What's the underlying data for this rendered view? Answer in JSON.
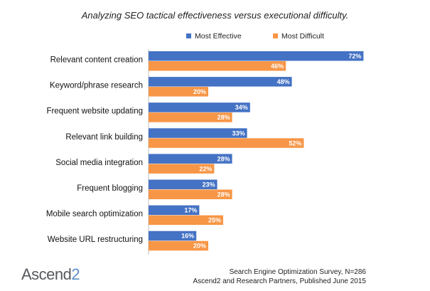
{
  "chart_data": {
    "type": "bar",
    "orientation": "horizontal",
    "title": "Analyzing SEO tactical effectiveness versus executional difficulty.",
    "categories": [
      "Relevant content creation",
      "Keyword/phrase research",
      "Frequent website updating",
      "Relevant link building",
      "Social media integration",
      "Frequent blogging",
      "Mobile search optimization",
      "Website URL restructuring"
    ],
    "series": [
      {
        "name": "Most Effective",
        "color": "#4472c4",
        "values": [
          72,
          48,
          34,
          33,
          28,
          23,
          17,
          16
        ]
      },
      {
        "name": "Most Difficult",
        "color": "#f79646",
        "values": [
          46,
          20,
          28,
          52,
          22,
          28,
          25,
          20
        ]
      }
    ],
    "value_suffix": "%",
    "legend_position": "top",
    "grid": false,
    "xlim": [
      0,
      100
    ]
  },
  "logo": {
    "text_main": "Ascend",
    "text_accent": "2"
  },
  "footer": {
    "line1": "Search Engine Optimization Survey, N=286",
    "line2": "Ascend2 and Research Partners, Published June 2015"
  }
}
